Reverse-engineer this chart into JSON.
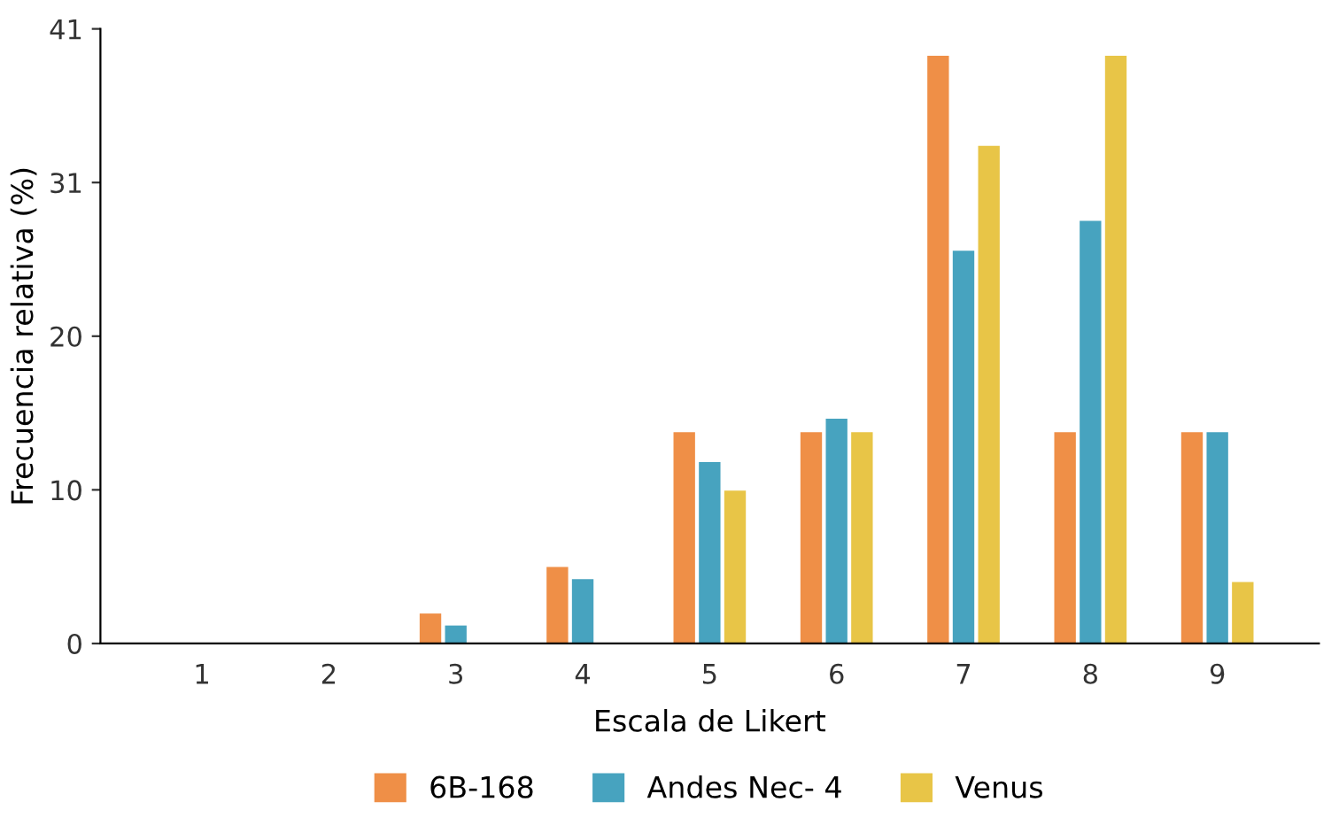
{
  "chart_data": {
    "type": "bar",
    "xlabel": "Escala de Likert",
    "ylabel": "Frecuencia relativa (%)",
    "categories": [
      "1",
      "2",
      "3",
      "4",
      "5",
      "6",
      "7",
      "8",
      "9"
    ],
    "series": [
      {
        "name": "6B-168",
        "color": "#ef8f47",
        "values": [
          0,
          0,
          2.0,
          5.1,
          14.1,
          14.1,
          39.2,
          14.1,
          14.1
        ]
      },
      {
        "name": "Andes Nec- 4",
        "color": "#47a3bf",
        "values": [
          0,
          0,
          1.2,
          4.3,
          12.1,
          15.0,
          26.2,
          28.2,
          14.1
        ]
      },
      {
        "name": "Venus",
        "color": "#e8c547",
        "values": [
          0,
          0,
          0,
          0,
          10.2,
          14.1,
          33.2,
          39.2,
          4.1
        ]
      }
    ],
    "ylim": [
      0,
      41
    ],
    "yticks": [
      0,
      {
        "value": 10.25,
        "label": "10"
      },
      {
        "value": 20.5,
        "label": "20"
      },
      {
        "value": 30.75,
        "label": "31"
      },
      41
    ],
    "grid": false,
    "legend": "bottom"
  }
}
